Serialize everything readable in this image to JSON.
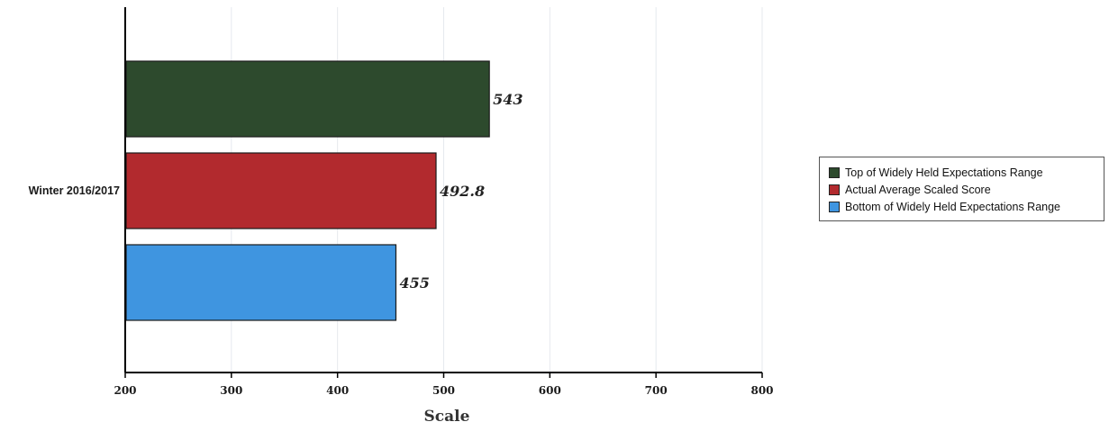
{
  "chart_data": {
    "type": "bar",
    "orientation": "horizontal",
    "title": "",
    "categories": [
      "Winter 2016/2017"
    ],
    "series": [
      {
        "name": "Top of Widely Held Expectations Range",
        "values": [
          543
        ],
        "label": "543",
        "color": "#2d4a2d"
      },
      {
        "name": "Actual Average Scaled Score",
        "values": [
          492.8
        ],
        "label": "492.8",
        "color": "#b22a2e"
      },
      {
        "name": "Bottom of Widely Held Expectations Range",
        "values": [
          455
        ],
        "label": "455",
        "color": "#3f95e0"
      }
    ],
    "xlabel": "Scale",
    "ylabel": "",
    "xlim": [
      200,
      800
    ],
    "xticks": [
      "200",
      "300",
      "400",
      "500",
      "600",
      "700",
      "800"
    ],
    "grid": true,
    "legend_position": "right"
  }
}
